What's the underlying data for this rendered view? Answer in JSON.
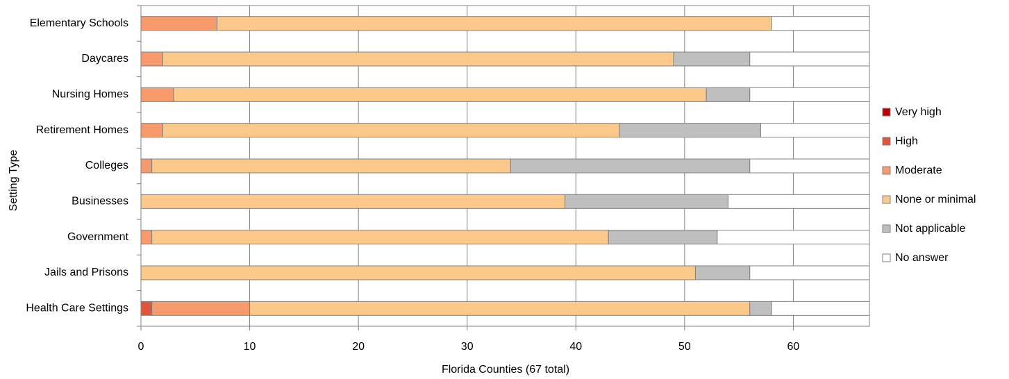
{
  "chart_data": {
    "type": "stacked-bar-horizontal",
    "x_label": "Florida Counties (67 total)",
    "y_label": "Setting Type",
    "categories": [
      "Elementary Schools",
      "Daycares",
      "Nursing Homes",
      "Retirement Homes",
      "Colleges",
      "Businesses",
      "Government",
      "Jails and Prisons",
      "Health Care Settings"
    ],
    "series": [
      {
        "name": "Very high",
        "color": "#c00000",
        "values": [
          0,
          0,
          0,
          0,
          0,
          0,
          0,
          0,
          0
        ]
      },
      {
        "name": "High",
        "color": "#e0553a",
        "values": [
          0,
          0,
          0,
          0,
          0,
          0,
          0,
          0,
          1
        ]
      },
      {
        "name": "Moderate",
        "color": "#f79a6c",
        "values": [
          7,
          2,
          3,
          2,
          1,
          0,
          1,
          0,
          9
        ]
      },
      {
        "name": "None or minimal",
        "color": "#fcc98a",
        "values": [
          51,
          47,
          49,
          42,
          33,
          39,
          42,
          51,
          46
        ]
      },
      {
        "name": "Not applicable",
        "color": "#bfbfbf",
        "values": [
          0,
          7,
          4,
          13,
          22,
          15,
          10,
          5,
          2
        ]
      },
      {
        "name": "No answer",
        "color": "#ffffff",
        "values": [
          9,
          11,
          11,
          10,
          11,
          13,
          14,
          11,
          9
        ]
      }
    ],
    "xlim": [
      0,
      67
    ],
    "xticks": [
      0,
      10,
      20,
      30,
      40,
      50,
      60
    ],
    "grid": true,
    "legend": "right"
  }
}
